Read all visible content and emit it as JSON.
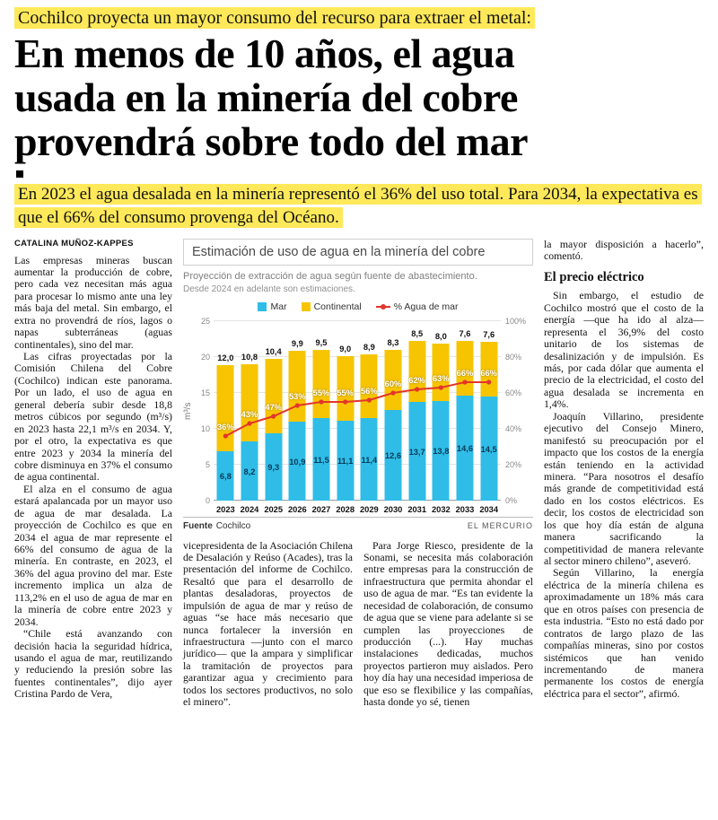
{
  "kicker": "Cochilco proyecta un mayor consumo del recurso para extraer el metal:",
  "headline_lines": [
    "En menos de 10 años, el agua",
    "usada en la minería del cobre",
    "provendrá sobre todo del mar"
  ],
  "subhead": "En 2023 el agua desalada en la minería representó el 36% del uso total. Para 2034, la expectativa es que el 66% del consumo provenga del Océano.",
  "byline": "CATALINA MUÑOZ-KAPPES",
  "columns": {
    "left": [
      "Las empresas mineras buscan aumentar la producción de cobre, pero cada vez necesitan más agua para procesar lo mismo ante una ley más baja del metal. Sin embargo, el extra no provendrá de ríos, lagos o napas subterráneas (aguas continentales), sino del mar.",
      "Las cifras proyectadas por la Comisión Chilena del Cobre (Cochilco) indican este panorama. Por un lado, el uso de agua en general debería subir desde 18,8 metros cúbicos por segundo (m³/s) en 2023 hasta 22,1 m³/s en 2034. Y, por el otro, la expectativa es que entre 2023 y 2034 la minería del cobre disminuya en 37% el consumo de agua continental.",
      "El alza en el consumo de agua estará apalancada por un mayor uso de agua de mar desalada. La proyección de Cochilco es que en 2034 el agua de mar represente el 66% del consumo de agua de la minería. En contraste, en 2023, el 36% del agua provino del mar. Este incremento implica un alza de 113,2% en el uso de agua de mar en la minería de cobre entre 2023 y 2034.",
      "“Chile está avanzando con decisión hacia la seguridad hídrica, usando el agua de mar, reutilizando y reduciendo la presión sobre las fuentes continentales”, dijo ayer Cristina Pardo de Vera,"
    ],
    "mid_left": [
      "vicepresidenta de la Asociación Chilena de Desalación y Reúso (Acades), tras la presentación del informe de Cochilco. Resaltó que para el desarrollo de plantas desaladoras, proyectos de impulsión de agua de mar y reúso de aguas “se hace más necesario que nunca fortalecer la inversión en infraestructura —junto con el marco jurídico— que la ampara y simplificar la tramitación de proyectos para garantizar agua y crecimiento para todos los sectores productivos, no solo el minero”."
    ],
    "mid_right": [
      "Para Jorge Riesco, presidente de la Sonami, se necesita más colaboración entre empresas para la construcción de infraestructura que permita ahondar el uso de agua de mar. “Es tan evidente la necesidad de colaboración, de consumo de agua que se viene para adelante si se cumplen las proyecciones de producción (...). Hay muchas instalaciones dedicadas, muchos proyectos partieron muy aislados. Pero hoy día hay una necesidad imperiosa de que eso se flexibilice y las compañías, hasta donde yo sé, tienen"
    ],
    "right_heading": "El precio eléctrico",
    "right": [
      "la mayor disposición a hacerlo”, comentó.",
      "Sin embargo, el estudio de Cochilco mostró que el costo de la energía —que ha ido al alza— representa el 36,9% del costo unitario de los sistemas de desalinización y de impulsión. Es más, por cada dólar que aumenta el precio de la electricidad, el costo del agua desalada se incrementa en 1,4%.",
      "Joaquín Villarino, presidente ejecutivo del Consejo Minero, manifestó su preocupación por el impacto que los costos de la energía están teniendo en la actividad minera. “Para nosotros el desafío más grande de competitividad está dado en los costos eléctricos. Es decir, los costos de electricidad son los que hoy día están de alguna manera sacrificando la competitividad de manera relevante al sector minero chileno”, aseveró.",
      "Según Villarino, la energía eléctrica de la minería chilena es aproximadamente un 18% más cara que en otros países con presencia de esta industria. “Esto no está dado por contratos de largo plazo de las compañías mineras, sino por costos sistémicos que han venido incrementando de manera permanente los costos de energía eléctrica para el sector”, afirmó."
    ]
  },
  "chart": {
    "title": "Estimación de uso de agua en la minería del cobre",
    "subtitle": "Proyección de extracción de agua según fuente de abastecimiento.",
    "note": "Desde 2024 en adelante son estimaciones.",
    "legend_mar": "Mar",
    "legend_continental": "Continental",
    "legend_line": "% Agua de mar",
    "ylabel": "m³/s",
    "source_label": "Fuente",
    "source": "Cochilco",
    "credit": "EL MERCURIO",
    "highlight_color": "#ffe95a"
  },
  "chart_data": {
    "type": "bar",
    "stacked": true,
    "title": "Estimación de uso de agua en la minería del cobre",
    "categories": [
      "2023",
      "2024",
      "2025",
      "2026",
      "2027",
      "2028",
      "2029",
      "2030",
      "2031",
      "2032",
      "2033",
      "2034"
    ],
    "series": [
      {
        "name": "Mar",
        "color": "#2fbde8",
        "values": [
          6.8,
          8.2,
          9.3,
          10.9,
          11.5,
          11.1,
          11.4,
          12.6,
          13.7,
          13.8,
          14.6,
          14.5
        ]
      },
      {
        "name": "Continental",
        "color": "#f6c500",
        "values": [
          12.0,
          10.8,
          10.4,
          9.9,
          9.5,
          9.0,
          8.9,
          8.3,
          8.5,
          8.0,
          7.6,
          7.6
        ]
      }
    ],
    "line": {
      "name": "% Agua de mar",
      "color": "#e2352b",
      "axis": "right",
      "values": [
        36,
        43,
        47,
        53,
        55,
        55,
        56,
        60,
        62,
        63,
        66,
        66
      ]
    },
    "xlabel": "",
    "ylabel": "m³/s",
    "ylim": [
      0,
      25
    ],
    "y2lim": [
      0,
      100
    ],
    "grid": true,
    "legend_position": "top"
  }
}
